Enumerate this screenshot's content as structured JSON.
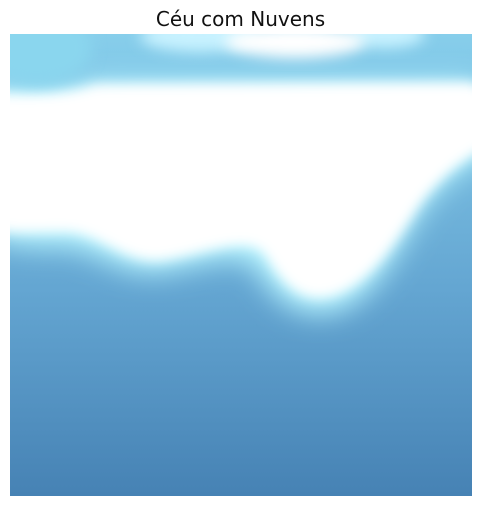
{
  "title": "Céu com Nuvens",
  "image": {
    "subject": "sky-with-clouds",
    "colors": {
      "sky_bottom": "#4682b4",
      "sky_mid": "#5a9bc9",
      "sky_top": "#87ceeb",
      "cloud_edge": "#b9f5ff",
      "cloud": "#ffffff"
    }
  }
}
